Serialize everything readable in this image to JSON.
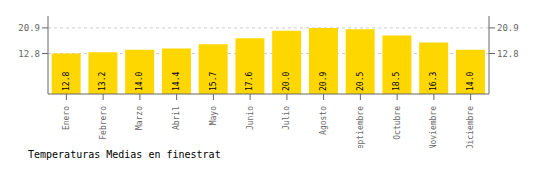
{
  "chart_data": {
    "type": "bar",
    "title": "Temperaturas Medias en finestrat",
    "categories": [
      "Enero",
      "Febrero",
      "Marzo",
      "Abril",
      "Mayo",
      "Junio",
      "Julio",
      "Agosto",
      "Septiembre",
      "Octubre",
      "Noviembre",
      "Diciembre"
    ],
    "values": [
      12.8,
      13.2,
      14.0,
      14.4,
      15.7,
      17.6,
      20.0,
      20.9,
      20.5,
      18.5,
      16.3,
      14.0
    ],
    "value_labels": [
      "12.8",
      "13.2",
      "14.0",
      "14.4",
      "15.7",
      "17.6",
      "20.0",
      "20.9",
      "20.5",
      "18.5",
      "16.3",
      "14.0"
    ],
    "data_labels": true,
    "color": "#FFD700",
    "ylim": [
      0,
      24.662
    ],
    "yticks": [
      12.8,
      20.9
    ],
    "y2lim": [
      0,
      24.662
    ],
    "y2ticks": [
      12.8,
      20.9
    ],
    "grid": true
  }
}
